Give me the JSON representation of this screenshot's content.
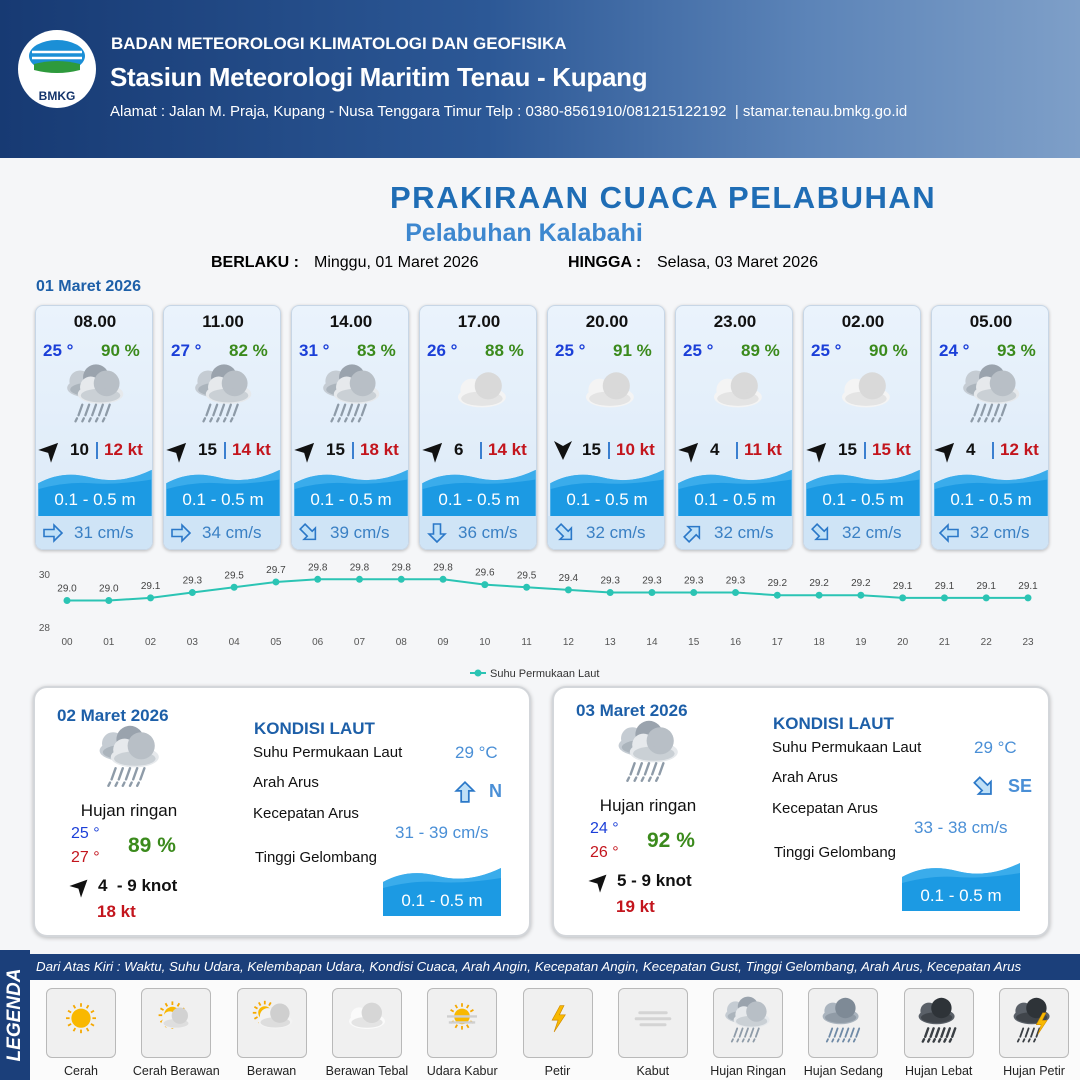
{
  "header": {
    "logo": "BMKG",
    "agency": "BADAN METEOROLOGI KLIMATOLOGI DAN GEOFISIKA",
    "station": "Stasiun Meteorologi Maritim Tenau - Kupang",
    "address": "Alamat : Jalan M. Praja, Kupang - Nusa Tenggara Timur Telp : 0380-8561910/081215122192  | stamar.tenau.bmkg.go.id"
  },
  "title": "PRAKIRAAN CUACA PELABUHAN",
  "subtitle": "Pelabuhan Kalabahi",
  "validity": {
    "from_label": "BERLAKU :",
    "from": "Minggu, 01 Maret 2026",
    "to_label": "HINGGA :",
    "to": "Selasa, 03 Maret 2026"
  },
  "today": {
    "date": "01 Maret 2026",
    "forecasts": [
      {
        "time": "08.00",
        "temp": "25 °",
        "humidity": "90 %",
        "wind": "10",
        "gust": "12 kt",
        "wave": "0.1 - 0.5 m",
        "current": "31 cm/s"
      },
      {
        "time": "11.00",
        "temp": "27 °",
        "humidity": "82 %",
        "wind": "15",
        "gust": "14 kt",
        "wave": "0.1 - 0.5 m",
        "current": "34 cm/s"
      },
      {
        "time": "14.00",
        "temp": "31 °",
        "humidity": "83 %",
        "wind": "15",
        "gust": "18 kt",
        "wave": "0.1 - 0.5 m",
        "current": "39 cm/s"
      },
      {
        "time": "17.00",
        "temp": "26 °",
        "humidity": "88 %",
        "wind": "6",
        "gust": "14 kt",
        "wave": "0.1 - 0.5 m",
        "current": "36 cm/s"
      },
      {
        "time": "20.00",
        "temp": "25 °",
        "humidity": "91 %",
        "wind": "15",
        "gust": "10 kt",
        "wave": "0.1 - 0.5 m",
        "current": "32 cm/s"
      },
      {
        "time": "23.00",
        "temp": "25 °",
        "humidity": "89 %",
        "wind": "4",
        "gust": "11 kt",
        "wave": "0.1 - 0.5 m",
        "current": "32 cm/s"
      },
      {
        "time": "02.00",
        "temp": "25 °",
        "humidity": "90 %",
        "wind": "15",
        "gust": "15 kt",
        "wave": "0.1 - 0.5 m",
        "current": "32 cm/s"
      },
      {
        "time": "05.00",
        "temp": "24 °",
        "humidity": "93 %",
        "wind": "4",
        "gust": "12 kt",
        "wave": "0.1 - 0.5 m",
        "current": "32 cm/s"
      }
    ]
  },
  "chart_data": {
    "type": "line",
    "categories": [
      "00",
      "01",
      "02",
      "03",
      "04",
      "05",
      "06",
      "07",
      "08",
      "09",
      "10",
      "11",
      "12",
      "13",
      "14",
      "15",
      "16",
      "17",
      "18",
      "19",
      "20",
      "21",
      "22",
      "23"
    ],
    "series": [
      {
        "name": "Suhu Permukaan Laut",
        "color": "#2bc4b4",
        "values": [
          29.0,
          29.0,
          29.1,
          29.3,
          29.5,
          29.7,
          29.8,
          29.8,
          29.8,
          29.8,
          29.6,
          29.5,
          29.4,
          29.3,
          29.3,
          29.3,
          29.3,
          29.2,
          29.2,
          29.2,
          29.1,
          29.1,
          29.1,
          29.1
        ],
        "value_labels": [
          "29.0",
          "29.0",
          "29.1",
          "29.3",
          "29.5",
          "29.7",
          "29.8",
          "29.8",
          "29.8",
          "29.8",
          "29.6",
          "29.5",
          "29.4",
          "29.3",
          "29.3",
          "29.3",
          "29.3",
          "29.2",
          "29.2",
          "29.2",
          "29.1",
          "29.1",
          "29.1",
          "29.1"
        ]
      }
    ],
    "ylim": [
      28,
      30
    ],
    "yticks": [
      28,
      30
    ]
  },
  "days": [
    {
      "date": "02 Maret 2026",
      "condition": "Hujan ringan",
      "temp_min": "25 °",
      "temp_max": "27 °",
      "humidity": "89 %",
      "wind": "4  - 9 knot",
      "gust": "18 kt",
      "sea": {
        "heading": "KONDISI LAUT",
        "sst_label": "Suhu Permukaan Laut",
        "sst": "29 °C",
        "dir_label": "Arah Arus",
        "dir": "N",
        "speed_label": "Kecepatan Arus",
        "speed": "31 - 39 cm/s",
        "wave_label": "Tinggi Gelombang",
        "wave": "0.1 - 0.5 m"
      }
    },
    {
      "date": "03 Maret 2026",
      "condition": "Hujan ringan",
      "temp_min": "24 °",
      "temp_max": "26 °",
      "humidity": "92 %",
      "wind": "5 - 9 knot",
      "gust": "19 kt",
      "sea": {
        "heading": "KONDISI LAUT",
        "sst_label": "Suhu Permukaan Laut",
        "sst": "29 °C",
        "dir_label": "Arah Arus",
        "dir": "SE",
        "speed_label": "Kecepatan Arus",
        "speed": "33 - 38 cm/s",
        "wave_label": "Tinggi Gelombang",
        "wave": "0.1 - 0.5 m"
      }
    }
  ],
  "legend": {
    "title": "LEGENDA",
    "description": "Dari Atas Kiri : Waktu, Suhu Udara, Kelembapan Udara, Kondisi Cuaca, Arah Angin, Kecepatan Angin, Kecepatan Gust, Tinggi Gelombang, Arah Arus, Kecepatan Arus",
    "items": [
      "Cerah",
      "Cerah Berawan",
      "Berawan",
      "Berawan Tebal",
      "Udara Kabur",
      "Petir",
      "Kabut",
      "Hujan Ringan",
      "Hujan Sedang",
      "Hujan Lebat",
      "Hujan Petir"
    ]
  }
}
